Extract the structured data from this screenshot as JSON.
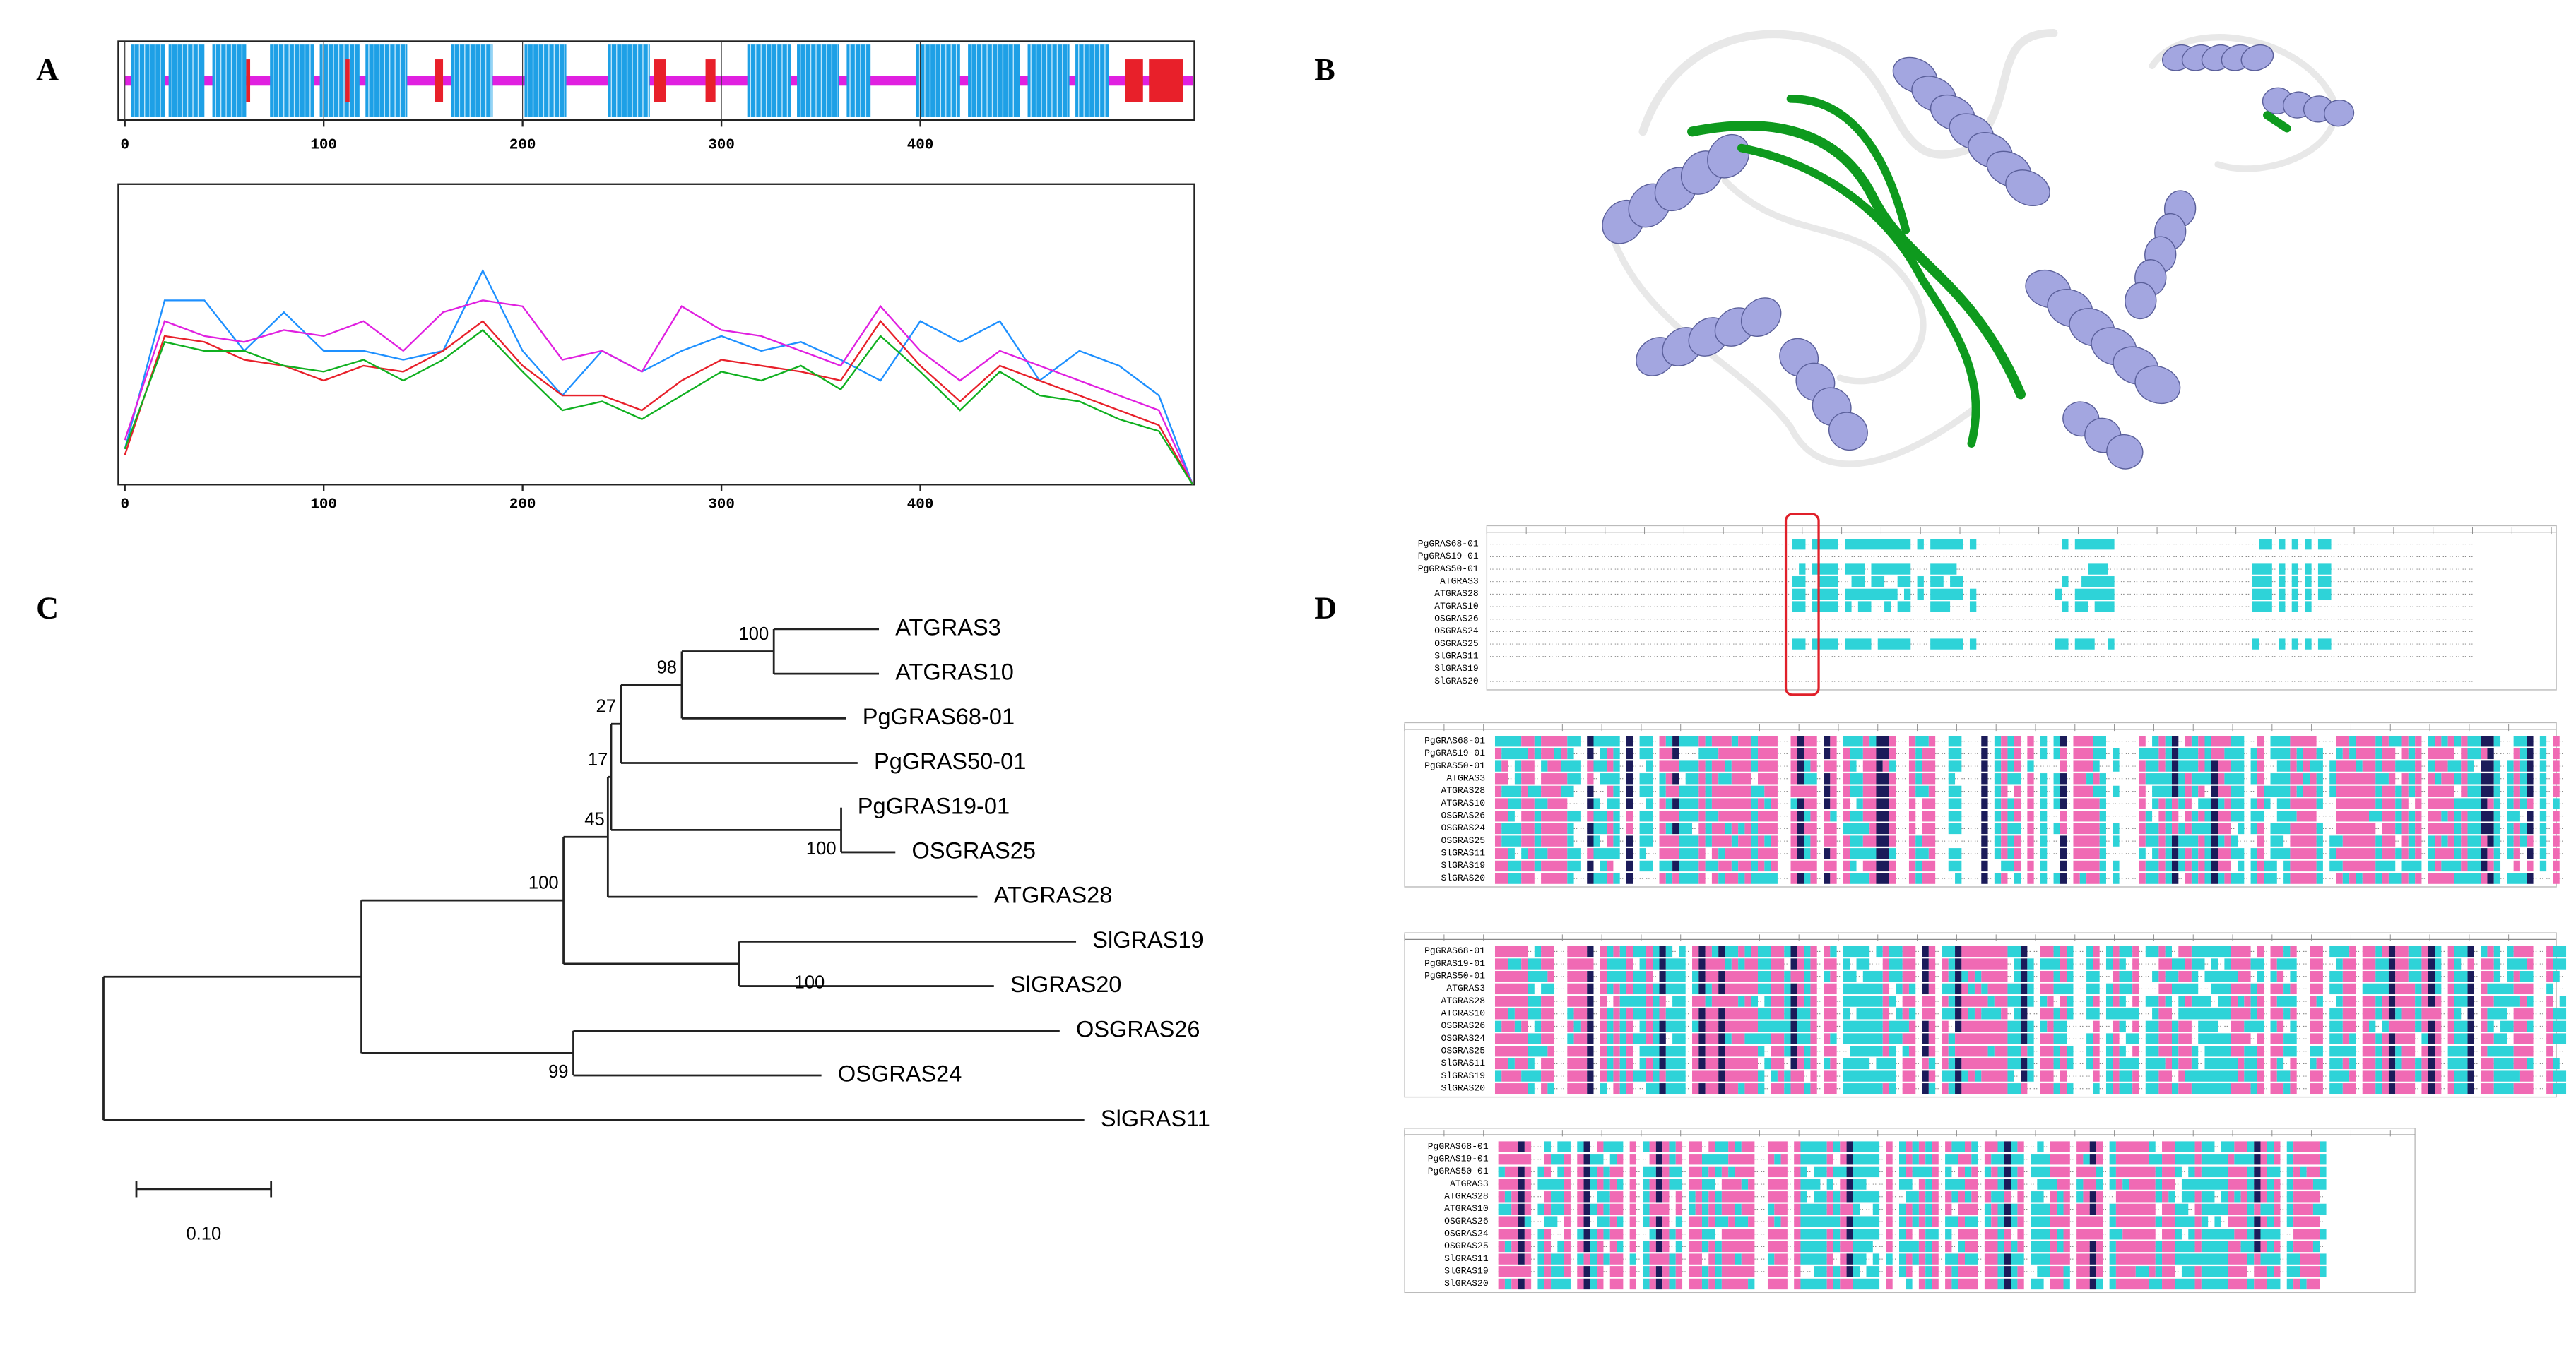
{
  "panel_labels": [
    "A",
    "B",
    "C",
    "D"
  ],
  "chart_data": [
    {
      "type": "track",
      "xlim": [
        0,
        537
      ],
      "xticks": [
        0,
        100,
        200,
        300,
        400
      ],
      "helix_color": "#1ea0e6",
      "strand_color": "#e8202a",
      "coil_color": "#e020e0",
      "helices": [
        [
          3,
          20
        ],
        [
          22,
          40
        ],
        [
          44,
          61
        ],
        [
          73,
          95
        ],
        [
          98,
          118
        ],
        [
          121,
          142
        ],
        [
          164,
          185
        ],
        [
          201,
          222
        ],
        [
          243,
          264
        ],
        [
          313,
          335
        ],
        [
          338,
          359
        ],
        [
          363,
          375
        ],
        [
          398,
          420
        ],
        [
          424,
          450
        ],
        [
          454,
          475
        ],
        [
          478,
          495
        ]
      ],
      "strands": [
        [
          61,
          63
        ],
        [
          111,
          113
        ],
        [
          156,
          160
        ],
        [
          266,
          272
        ],
        [
          292,
          297
        ],
        [
          503,
          512
        ],
        [
          515,
          532
        ]
      ]
    },
    {
      "type": "line",
      "xlim": [
        0,
        537
      ],
      "xticks": [
        0,
        100,
        200,
        300,
        400
      ],
      "ylim": [
        0,
        1
      ],
      "x": [
        0,
        20,
        40,
        60,
        80,
        100,
        120,
        140,
        160,
        180,
        200,
        220,
        240,
        260,
        280,
        300,
        320,
        340,
        360,
        380,
        400,
        420,
        440,
        460,
        480,
        500,
        520,
        537
      ],
      "series": [
        {
          "color": "#1e90ff",
          "values": [
            0.12,
            0.62,
            0.62,
            0.45,
            0.58,
            0.45,
            0.45,
            0.42,
            0.45,
            0.72,
            0.45,
            0.3,
            0.45,
            0.38,
            0.45,
            0.5,
            0.45,
            0.48,
            0.42,
            0.35,
            0.55,
            0.48,
            0.55,
            0.35,
            0.45,
            0.4,
            0.3,
            0
          ]
        },
        {
          "color": "#e020e0",
          "values": [
            0.15,
            0.55,
            0.5,
            0.48,
            0.52,
            0.5,
            0.55,
            0.45,
            0.58,
            0.62,
            0.6,
            0.42,
            0.45,
            0.38,
            0.6,
            0.52,
            0.5,
            0.45,
            0.4,
            0.6,
            0.45,
            0.35,
            0.45,
            0.4,
            0.35,
            0.3,
            0.25,
            0
          ]
        },
        {
          "color": "#e8202a",
          "values": [
            0.1,
            0.5,
            0.48,
            0.42,
            0.4,
            0.35,
            0.4,
            0.38,
            0.45,
            0.55,
            0.4,
            0.3,
            0.3,
            0.25,
            0.35,
            0.42,
            0.4,
            0.38,
            0.35,
            0.55,
            0.4,
            0.28,
            0.4,
            0.35,
            0.3,
            0.25,
            0.2,
            0
          ]
        },
        {
          "color": "#10b020",
          "values": [
            0.12,
            0.48,
            0.45,
            0.45,
            0.4,
            0.38,
            0.42,
            0.35,
            0.42,
            0.52,
            0.38,
            0.25,
            0.28,
            0.22,
            0.3,
            0.38,
            0.35,
            0.4,
            0.32,
            0.5,
            0.38,
            0.25,
            0.38,
            0.3,
            0.28,
            0.22,
            0.18,
            0
          ]
        }
      ]
    }
  ],
  "tree": {
    "leaves": [
      "ATGRAS3",
      "ATGRAS10",
      "PgGRAS68-01",
      "PgGRAS50-01",
      "PgGRAS19-01",
      "OSGRAS25",
      "ATGRAS28",
      "SlGRAS19",
      "SlGRAS20",
      "OSGRAS26",
      "OSGRAS24",
      "SlGRAS11"
    ],
    "bootstrap": [
      100,
      98,
      27,
      17,
      45,
      100,
      100,
      100,
      99
    ],
    "scale_label": "0.10"
  },
  "alignment": {
    "names": [
      "PgGRAS68-01",
      "PgGRAS19-01",
      "PgGRAS50-01",
      "ATGRAS3",
      "ATGRAS28",
      "ATGRAS10",
      "OSGRAS26",
      "OSGRAS24",
      "OSGRAS25",
      "SlGRAS11",
      "SlGRAS19",
      "SlGRAS20"
    ]
  }
}
